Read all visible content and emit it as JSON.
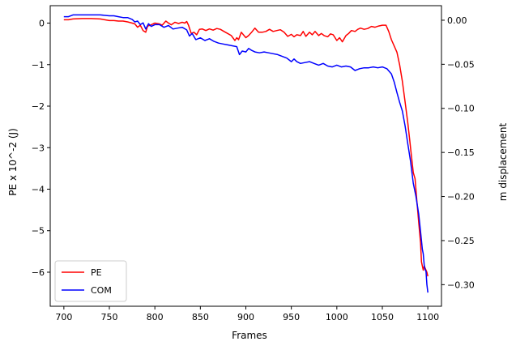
{
  "chart_data": {
    "type": "line",
    "xlabel": "Frames",
    "ylabel_left": "PE x 10^-2 (J)",
    "ylabel_right": "m displacement",
    "xlim": [
      685,
      1115
    ],
    "ylim_left": [
      -6.82,
      0.42
    ],
    "ylim_right": [
      -0.3245,
      0.0165
    ],
    "x_ticks": [
      700,
      750,
      800,
      850,
      900,
      950,
      1000,
      1050,
      1100
    ],
    "y_ticks_left": [
      0,
      -1,
      -2,
      -3,
      -4,
      -5,
      -6
    ],
    "y_ticks_right": [
      0.0,
      -0.05,
      -0.1,
      -0.15,
      -0.2,
      -0.25,
      -0.3
    ],
    "grid": false,
    "legend_position": "lower-left",
    "series": [
      {
        "name": "PE",
        "color": "#ff0000",
        "axis": "left",
        "x": [
          700,
          705,
          710,
          720,
          730,
          740,
          750,
          755,
          760,
          765,
          770,
          775,
          778,
          781,
          784,
          787,
          790,
          792,
          795,
          798,
          800,
          805,
          808,
          812,
          815,
          818,
          822,
          826,
          830,
          833,
          835,
          837,
          840,
          843,
          846,
          849,
          852,
          856,
          860,
          864,
          868,
          872,
          876,
          880,
          884,
          888,
          890,
          892,
          895,
          898,
          900,
          903,
          906,
          910,
          914,
          918,
          922,
          926,
          930,
          934,
          938,
          942,
          946,
          950,
          953,
          956,
          960,
          963,
          966,
          970,
          973,
          976,
          980,
          983,
          986,
          990,
          993,
          996,
          1000,
          1003,
          1006,
          1010,
          1013,
          1016,
          1020,
          1023,
          1026,
          1030,
          1034,
          1038,
          1042,
          1046,
          1050,
          1054,
          1057,
          1060,
          1063,
          1066,
          1069,
          1072,
          1075,
          1078,
          1080,
          1082,
          1084,
          1086,
          1088,
          1090,
          1092,
          1093,
          1094,
          1095,
          1096,
          1097,
          1098,
          1099,
          1100
        ],
        "y": [
          0.08,
          0.08,
          0.1,
          0.11,
          0.11,
          0.1,
          0.06,
          0.06,
          0.05,
          0.05,
          0.03,
          0.0,
          -0.02,
          -0.1,
          -0.05,
          -0.18,
          -0.22,
          -0.07,
          -0.05,
          -0.02,
          0.0,
          -0.02,
          -0.05,
          0.05,
          0.0,
          -0.04,
          0.02,
          -0.01,
          0.02,
          0.0,
          0.04,
          -0.05,
          -0.25,
          -0.22,
          -0.28,
          -0.15,
          -0.14,
          -0.18,
          -0.14,
          -0.17,
          -0.13,
          -0.15,
          -0.2,
          -0.25,
          -0.3,
          -0.42,
          -0.35,
          -0.4,
          -0.22,
          -0.3,
          -0.35,
          -0.3,
          -0.23,
          -0.12,
          -0.22,
          -0.22,
          -0.2,
          -0.15,
          -0.2,
          -0.18,
          -0.16,
          -0.22,
          -0.32,
          -0.27,
          -0.33,
          -0.28,
          -0.3,
          -0.2,
          -0.32,
          -0.22,
          -0.28,
          -0.2,
          -0.3,
          -0.25,
          -0.3,
          -0.33,
          -0.26,
          -0.28,
          -0.42,
          -0.35,
          -0.45,
          -0.3,
          -0.25,
          -0.18,
          -0.2,
          -0.15,
          -0.12,
          -0.15,
          -0.13,
          -0.08,
          -0.1,
          -0.07,
          -0.05,
          -0.05,
          -0.2,
          -0.4,
          -0.55,
          -0.7,
          -1.0,
          -1.4,
          -1.9,
          -2.4,
          -2.8,
          -3.2,
          -3.6,
          -3.75,
          -4.3,
          -4.8,
          -5.3,
          -5.75,
          -5.85,
          -5.95,
          -5.85,
          -5.9,
          -5.95,
          -6.0,
          -6.1
        ]
      },
      {
        "name": "COM",
        "color": "#0000ff",
        "axis": "right",
        "x": [
          700,
          705,
          710,
          720,
          730,
          740,
          750,
          755,
          760,
          765,
          770,
          775,
          778,
          781,
          784,
          787,
          790,
          793,
          796,
          800,
          805,
          810,
          815,
          820,
          825,
          830,
          835,
          838,
          841,
          845,
          850,
          855,
          860,
          865,
          870,
          875,
          880,
          885,
          890,
          893,
          896,
          900,
          903,
          906,
          910,
          915,
          920,
          925,
          930,
          935,
          940,
          945,
          950,
          953,
          956,
          960,
          965,
          970,
          975,
          980,
          985,
          990,
          995,
          1000,
          1005,
          1010,
          1015,
          1020,
          1025,
          1030,
          1035,
          1040,
          1045,
          1050,
          1055,
          1060,
          1063,
          1066,
          1069,
          1072,
          1075,
          1078,
          1081,
          1084,
          1087,
          1090,
          1092,
          1094,
          1095,
          1096,
          1097,
          1098,
          1099,
          1100
        ],
        "y": [
          0.004,
          0.004,
          0.006,
          0.006,
          0.006,
          0.006,
          0.005,
          0.005,
          0.004,
          0.003,
          0.003,
          0.001,
          -0.002,
          -0.001,
          -0.005,
          -0.003,
          -0.01,
          -0.004,
          -0.007,
          -0.005,
          -0.005,
          -0.008,
          -0.006,
          -0.01,
          -0.009,
          -0.008,
          -0.011,
          -0.018,
          -0.015,
          -0.022,
          -0.02,
          -0.023,
          -0.021,
          -0.024,
          -0.026,
          -0.027,
          -0.028,
          -0.029,
          -0.03,
          -0.039,
          -0.035,
          -0.036,
          -0.032,
          -0.034,
          -0.036,
          -0.037,
          -0.036,
          -0.037,
          -0.038,
          -0.039,
          -0.041,
          -0.043,
          -0.047,
          -0.044,
          -0.047,
          -0.049,
          -0.048,
          -0.047,
          -0.049,
          -0.051,
          -0.049,
          -0.052,
          -0.053,
          -0.051,
          -0.053,
          -0.052,
          -0.053,
          -0.057,
          -0.055,
          -0.054,
          -0.054,
          -0.053,
          -0.054,
          -0.053,
          -0.055,
          -0.061,
          -0.07,
          -0.082,
          -0.093,
          -0.103,
          -0.12,
          -0.14,
          -0.16,
          -0.185,
          -0.2,
          -0.22,
          -0.24,
          -0.26,
          -0.265,
          -0.278,
          -0.283,
          -0.285,
          -0.3,
          -0.309
        ]
      }
    ]
  }
}
